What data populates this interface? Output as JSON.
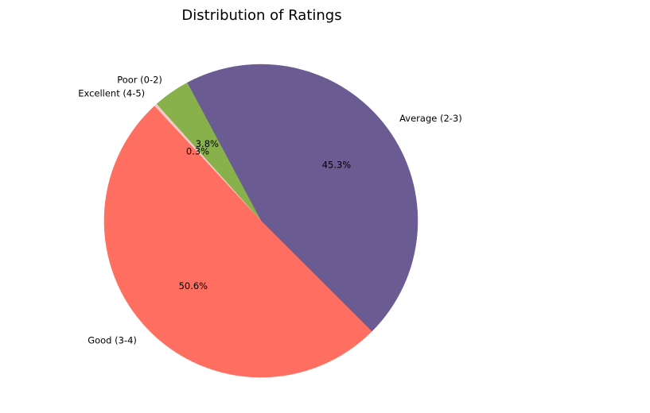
{
  "chart_data": {
    "type": "pie",
    "title": "Distribution of Ratings",
    "categories": [
      "Average (2-3)",
      "Poor (0-2)",
      "Excellent (4-5)",
      "Good (3-4)"
    ],
    "values": [
      45.3,
      3.8,
      0.3,
      50.6
    ],
    "value_labels": [
      "45.3%",
      "3.8%",
      "0.3%",
      "50.6%"
    ],
    "colors": [
      "#6a5b93",
      "#88b04b",
      "#f7cac9",
      "#ff6f61"
    ],
    "start_angle_deg": -45,
    "direction": "counterclockwise",
    "legend": "none"
  }
}
